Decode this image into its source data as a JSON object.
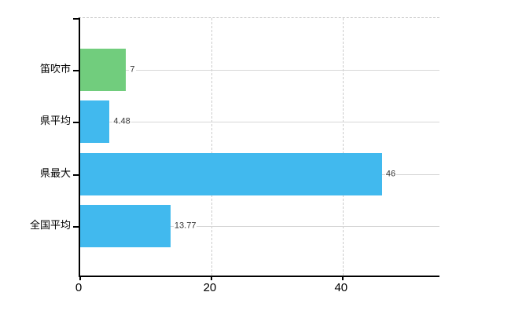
{
  "chart_data": {
    "type": "bar",
    "orientation": "horizontal",
    "title": "",
    "xlabel": "",
    "ylabel": "",
    "categories": [
      "笛吹市",
      "県平均",
      "県最大",
      "全国平均"
    ],
    "values": [
      7,
      4.48,
      46,
      13.77
    ],
    "value_labels": [
      "7",
      "4.48",
      "46",
      "13.77"
    ],
    "bar_colors": [
      "#71cd7d",
      "#41b9ee",
      "#41b9ee",
      "#41b9ee"
    ],
    "xlim": [
      0,
      55
    ],
    "xticks": [
      0,
      20,
      40
    ],
    "xtick_labels": [
      "0",
      "20",
      "40"
    ],
    "grid": true,
    "legend": false
  },
  "colors": {
    "background": "#ffffff",
    "axis": "#000000",
    "gridline_solid": "#d6d6d6",
    "gridline_dashed": "#cccccc",
    "value_text": "#333333",
    "label_text": "#000000",
    "green_bar": "#71cd7d",
    "blue_bar": "#41b9ee"
  }
}
